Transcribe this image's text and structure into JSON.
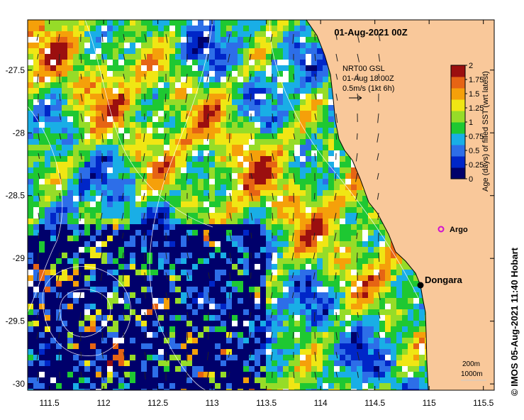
{
  "map": {
    "title": "01-Aug-2021 00Z",
    "current_label_lines": [
      "NRT00 GSL",
      "01-Aug 18:00Z",
      "0.5m/s (1kt 6h)"
    ],
    "credit": "© IMOS 05-Aug-2021 11:40 Hobart",
    "lon_ticks": [
      "111.5",
      "112",
      "112.5",
      "113",
      "113.5",
      "114",
      "114.5",
      "115",
      "115.5"
    ],
    "lat_ticks": [
      "-27.5",
      "-28",
      "-28.5",
      "-29",
      "-29.5",
      "-30"
    ],
    "lon_range": [
      111.3,
      115.6
    ],
    "lat_range": [
      -30.05,
      -27.1
    ],
    "places": [
      {
        "name": "Dongara",
        "lon": 114.93,
        "lat": -29.26
      },
      {
        "name": "Argo",
        "lon": 115.1,
        "lat": -28.86
      }
    ],
    "colorbar": {
      "label": "Age (days) of filled SST (wrt latest)",
      "ticks": [
        "0",
        "0.25",
        "0.5",
        "0.75",
        "1",
        "1.25",
        "1.5",
        "1.75",
        "2"
      ],
      "colors": [
        "#00006b",
        "#0026c8",
        "#2d6ee8",
        "#19aee6",
        "#1ec832",
        "#96dc28",
        "#f0e614",
        "#f5a00a",
        "#e66414",
        "#9b0f0f"
      ]
    },
    "contour_legend": [
      "200m",
      "1000m"
    ],
    "land_color": "#f9c89a"
  }
}
